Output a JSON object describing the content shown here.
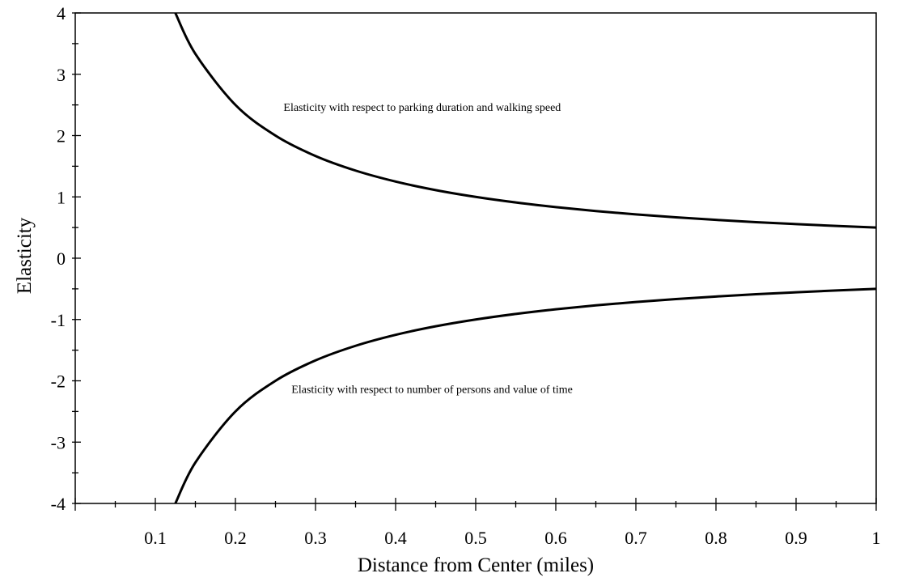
{
  "chart_data": {
    "type": "line",
    "xlabel": "Distance from Center (miles)",
    "ylabel": "Elasticity",
    "xlim": [
      0,
      1
    ],
    "ylim": [
      -4,
      4
    ],
    "x_ticks": [
      0.1,
      0.2,
      0.3,
      0.4,
      0.5,
      0.6,
      0.7,
      0.8,
      0.9,
      1
    ],
    "x_tick_labels": [
      "0.1",
      "0.2",
      "0.3",
      "0.4",
      "0.5",
      "0.6",
      "0.7",
      "0.8",
      "0.9",
      "1"
    ],
    "y_ticks": [
      -4,
      -3,
      -2,
      -1,
      0,
      1,
      2,
      3,
      4
    ],
    "y_tick_labels": [
      "-4",
      "-3",
      "-2",
      "-1",
      "0",
      "1",
      "2",
      "3",
      "4"
    ],
    "grid": false,
    "series": [
      {
        "x": [
          0.125,
          0.15,
          0.2,
          0.25,
          0.3,
          0.35,
          0.4,
          0.45,
          0.5,
          0.55,
          0.6,
          0.65,
          0.7,
          0.75,
          0.8,
          0.85,
          0.9,
          0.95,
          1.0
        ],
        "values": [
          4.0,
          3.333,
          2.5,
          2.0,
          1.667,
          1.429,
          1.25,
          1.111,
          1.0,
          0.909,
          0.833,
          0.769,
          0.714,
          0.667,
          0.625,
          0.588,
          0.556,
          0.526,
          0.5
        ]
      },
      {
        "x": [
          0.125,
          0.15,
          0.2,
          0.25,
          0.3,
          0.35,
          0.4,
          0.45,
          0.5,
          0.55,
          0.6,
          0.65,
          0.7,
          0.75,
          0.8,
          0.85,
          0.9,
          0.95,
          1.0
        ],
        "values": [
          -4.0,
          -3.333,
          -2.5,
          -2.0,
          -1.667,
          -1.429,
          -1.25,
          -1.111,
          -1.0,
          -0.909,
          -0.833,
          -0.769,
          -0.714,
          -0.667,
          -0.625,
          -0.588,
          -0.556,
          -0.526,
          -0.5
        ]
      }
    ],
    "annotations": [
      {
        "text": "Elasticity with respect to parking duration and walking speed",
        "x": 0.26,
        "y": 2.4
      },
      {
        "text": "Elasticity with respect to number of persons and value of time",
        "x": 0.27,
        "y": -2.2
      }
    ]
  }
}
